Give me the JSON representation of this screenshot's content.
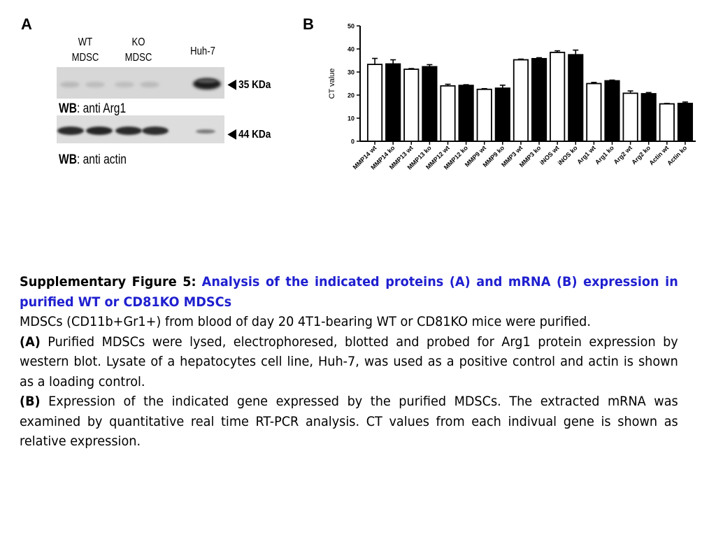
{
  "panel_a": {
    "letter": "A",
    "lanes": {
      "wt_line1": "WT",
      "wt_line2": "MDSC",
      "ko_line1": "KO",
      "ko_line2": "MDSC",
      "huh7": "Huh-7"
    },
    "markers": {
      "upper": "35 KDa",
      "lower": "44 KDa"
    },
    "wb_upper": {
      "prefix": "WB",
      "rest": ": anti Arg1"
    },
    "wb_lower": {
      "prefix": "WB",
      "rest": ": anti actin"
    }
  },
  "panel_b": {
    "letter": "B"
  },
  "chart_data": {
    "type": "bar",
    "ylabel": "CT value",
    "ylim": [
      0,
      50
    ],
    "yticks": [
      0,
      10,
      20,
      30,
      40,
      50
    ],
    "categories": [
      "MMP14 wt",
      "MMP14 ko",
      "MMP13 wt",
      "MMP13 ko",
      "MMP12 wt",
      "MMP12 ko",
      "MMP9 wt",
      "MMP9 ko",
      "MMP3 wt",
      "MMP3 ko",
      "iNOS wt",
      "iNOS ko",
      "Arg1 wt",
      "Arg1 ko",
      "Arg2 wt",
      "Arg2 ko",
      "Actin wt",
      "Actin ko"
    ],
    "values": [
      33.3,
      33.5,
      31.2,
      32.3,
      24.0,
      24.2,
      22.5,
      23.0,
      35.3,
      35.8,
      38.5,
      37.5,
      25.0,
      26.2,
      20.8,
      20.6,
      16.2,
      16.4
    ],
    "errors": [
      2.6,
      1.8,
      0.3,
      0.9,
      0.7,
      0.3,
      0.3,
      1.3,
      0.3,
      0.4,
      0.7,
      2.0,
      0.5,
      0.3,
      1.0,
      0.5,
      0.2,
      0.6
    ],
    "fill_pattern": [
      "#ffffff",
      "#000000"
    ],
    "grid": false,
    "legend": "none"
  },
  "caption": {
    "label": "Supplementary Figure 5:",
    "heading": "Analysis of the indicated proteins (A) and mRNA (B) expression in purified WT or CD81KO MDSCs",
    "para1": "MDSCs (CD11b+Gr1+) from blood of day 20 4T1-bearing WT or CD81KO mice were purified.",
    "para2_label": "(A)",
    "para2": " Purified MDSCs were lysed, electrophoresed, blotted and probed for Arg1 protein expression by western blot. Lysate of a hepatocytes cell line, Huh-7, was used as a positive control and actin is shown as a loading control.",
    "para3_label": "(B)",
    "para3": " Expression of the indicated gene expressed by the purified MDSCs. The extracted mRNA was examined by quantitative real time RT-PCR analysis. CT values from each indivual gene is shown as relative expression."
  }
}
